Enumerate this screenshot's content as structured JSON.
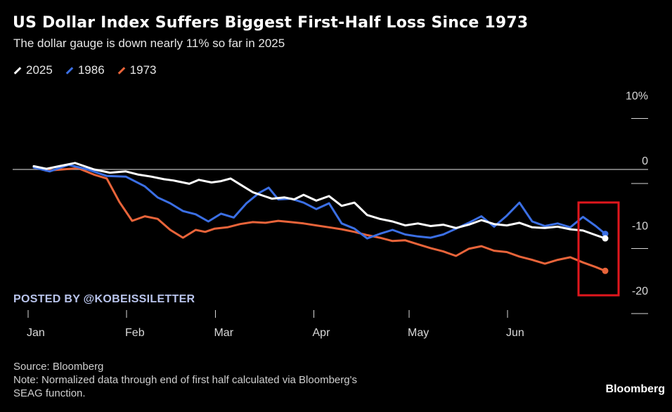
{
  "title": "US Dollar Index Suffers Biggest First-Half Loss Since 1973",
  "subtitle": "The dollar gauge is down nearly 11% so far in 2025",
  "watermark": "POSTED BY @KOBEISSILETTER",
  "source": "Source: Bloomberg",
  "note_line1": "Note: Normalized data through end of first half calculated via Bloomberg's",
  "note_line2": "SEAG function.",
  "brand": "Bloomberg",
  "colors": {
    "s2025": "#ffffff",
    "s1986": "#3b6fe4",
    "s1973": "#e8643a",
    "highlight": "#e0161d",
    "zero_line": "#9a9a9a",
    "axis_text": "#d9d9d9"
  },
  "chart_data": {
    "type": "line",
    "title": "US Dollar Index Suffers Biggest First-Half Loss Since 1973",
    "subtitle": "The dollar gauge is down nearly 11% so far in 2025",
    "xlabel": "",
    "ylabel": "",
    "x_ticks": [
      "Jan",
      "Feb",
      "Mar",
      "Apr",
      "May",
      "Jun"
    ],
    "y_ticks": [
      "10%",
      "0",
      "-10",
      "-20"
    ],
    "y_tick_values": [
      10,
      0,
      -10,
      -20
    ],
    "ylim": [
      -20,
      10
    ],
    "grid": false,
    "legend": "top-left",
    "annotation": "red box highlighting the end-of-June values",
    "series": [
      {
        "name": "2025",
        "x": [
          1,
          5,
          9,
          14,
          20,
          25,
          30,
          34,
          38,
          42,
          45,
          50,
          53,
          57,
          60,
          63,
          66,
          70,
          73,
          76,
          80,
          83,
          86,
          90,
          94,
          98,
          102,
          106,
          110,
          114,
          118,
          122,
          126,
          130,
          134,
          138,
          142,
          146,
          150,
          154,
          158,
          162,
          166,
          170,
          174,
          178,
          181
        ],
        "values": [
          0.5,
          0.1,
          0.5,
          1.0,
          0.0,
          -0.5,
          -0.3,
          -0.8,
          -1.1,
          -1.5,
          -1.7,
          -2.2,
          -1.6,
          -2.0,
          -1.8,
          -1.4,
          -2.3,
          -3.5,
          -4.0,
          -4.5,
          -4.3,
          -4.6,
          -3.9,
          -4.8,
          -4.1,
          -5.6,
          -5.1,
          -7.0,
          -7.6,
          -8.0,
          -8.6,
          -8.3,
          -8.7,
          -8.5,
          -9.0,
          -8.5,
          -7.8,
          -8.4,
          -8.6,
          -8.2,
          -8.9,
          -9.0,
          -8.8,
          -9.2,
          -9.4,
          -10.1,
          -10.6
        ]
      },
      {
        "name": "1986",
        "x": [
          1,
          6,
          12,
          18,
          24,
          30,
          36,
          40,
          44,
          48,
          52,
          56,
          60,
          64,
          68,
          72,
          75,
          78,
          82,
          86,
          90,
          94,
          98,
          102,
          106,
          110,
          114,
          118,
          122,
          126,
          130,
          134,
          138,
          142,
          146,
          150,
          154,
          158,
          162,
          166,
          170,
          174,
          178,
          181
        ],
        "values": [
          0.3,
          -0.3,
          0.7,
          0.0,
          -1.0,
          -1.1,
          -2.6,
          -4.3,
          -5.2,
          -6.4,
          -6.9,
          -8.0,
          -6.8,
          -7.4,
          -5.2,
          -3.6,
          -2.8,
          -4.6,
          -4.5,
          -5.1,
          -6.1,
          -5.2,
          -8.3,
          -9.1,
          -10.6,
          -9.9,
          -9.3,
          -10.0,
          -10.3,
          -10.5,
          -10.0,
          -9.1,
          -8.2,
          -7.2,
          -8.8,
          -7.1,
          -5.1,
          -8.0,
          -8.7,
          -8.3,
          -8.9,
          -7.3,
          -8.7,
          -9.9
        ]
      },
      {
        "name": "1973",
        "x": [
          1,
          5,
          10,
          15,
          20,
          24,
          28,
          32,
          36,
          40,
          44,
          48,
          52,
          55,
          58,
          62,
          66,
          70,
          74,
          78,
          82,
          86,
          90,
          94,
          98,
          102,
          106,
          110,
          114,
          118,
          122,
          126,
          130,
          134,
          138,
          142,
          146,
          150,
          154,
          158,
          162,
          166,
          170,
          174,
          178,
          181
        ],
        "values": [
          0.4,
          -0.2,
          0.0,
          0.2,
          -0.8,
          -1.4,
          -5.0,
          -7.9,
          -7.2,
          -7.6,
          -9.3,
          -10.5,
          -9.3,
          -9.6,
          -9.1,
          -8.9,
          -8.4,
          -8.1,
          -8.2,
          -7.9,
          -8.1,
          -8.3,
          -8.6,
          -8.9,
          -9.2,
          -9.6,
          -10.1,
          -10.5,
          -11.0,
          -10.9,
          -11.5,
          -12.1,
          -12.6,
          -13.3,
          -12.2,
          -11.8,
          -12.5,
          -12.7,
          -13.4,
          -13.9,
          -14.5,
          -13.9,
          -13.5,
          -14.3,
          -15.0,
          -15.6
        ]
      }
    ]
  }
}
